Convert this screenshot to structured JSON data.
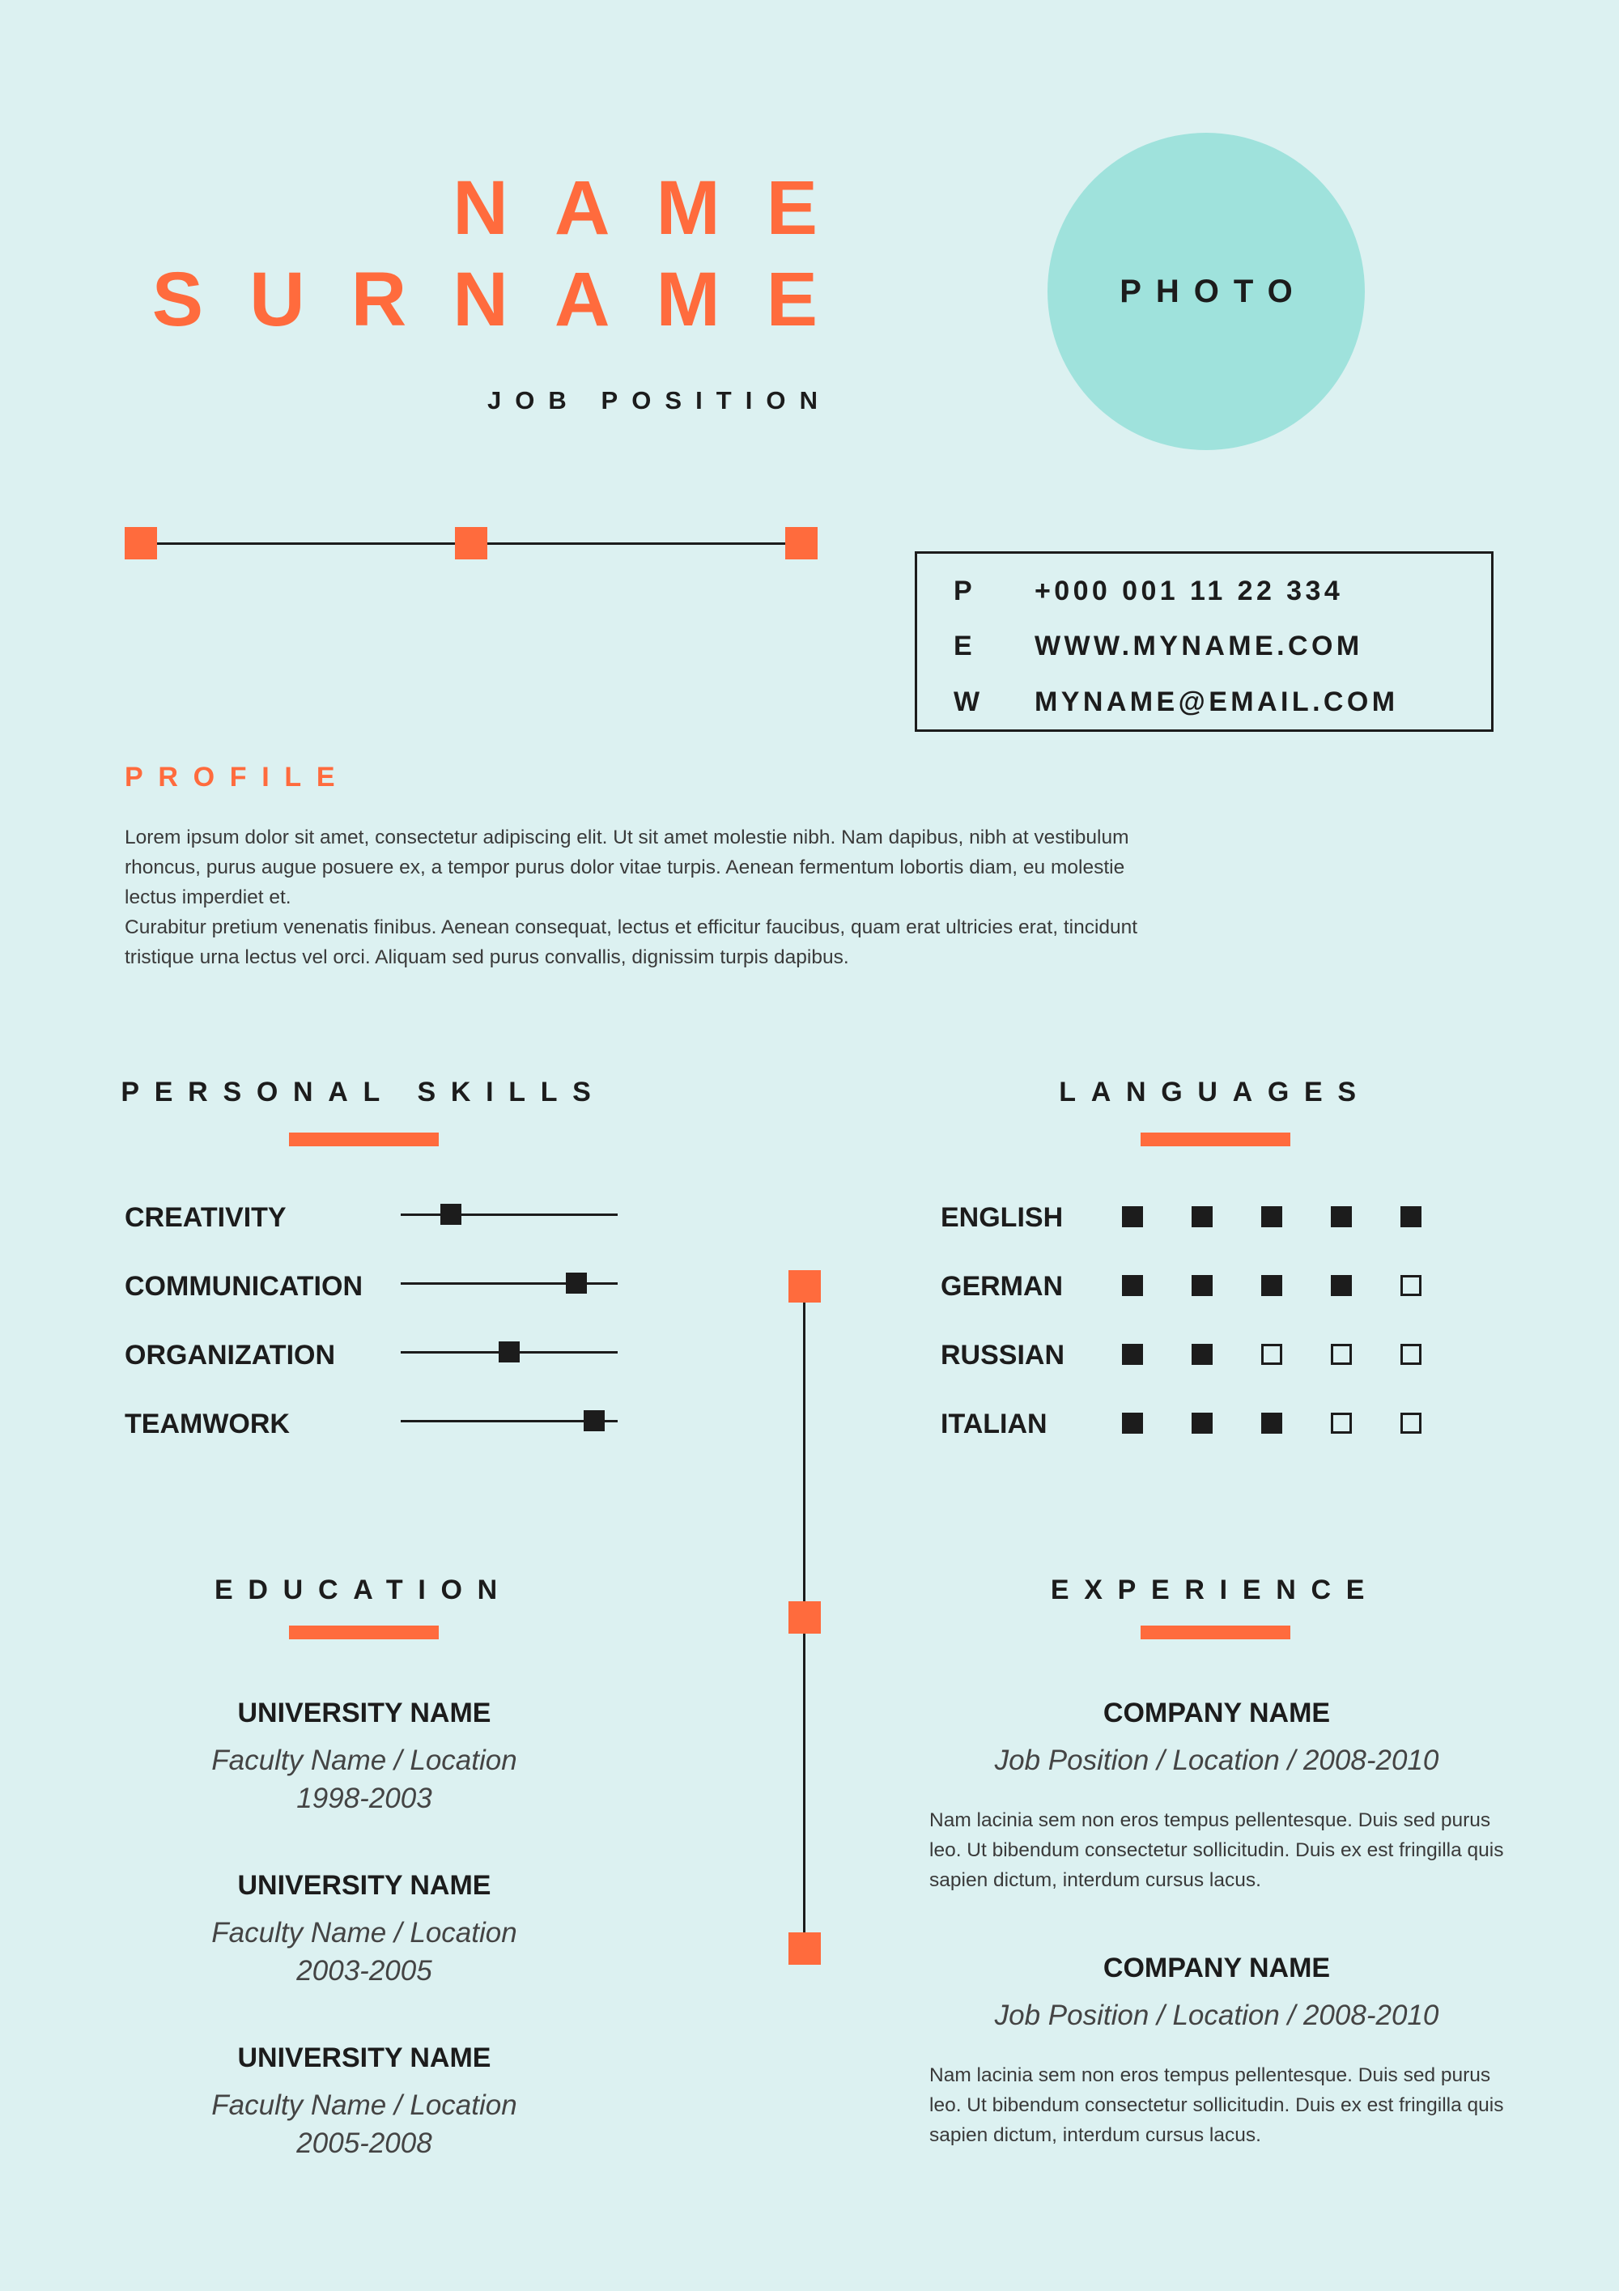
{
  "header": {
    "first_name": "NAME",
    "last_name": "SURNAME",
    "job_position": "JOB POSITION",
    "photo_label": "PHOTO"
  },
  "contact": {
    "rows": [
      {
        "letter": "P",
        "value": "+000 001 11 22 334"
      },
      {
        "letter": "E",
        "value": "WWW.MYNAME.COM"
      },
      {
        "letter": "W",
        "value": "MYNAME@EMAIL.COM"
      }
    ]
  },
  "profile": {
    "heading": "PROFILE",
    "paragraph1": "Lorem ipsum dolor sit amet, consectetur adipiscing elit. Ut sit amet molestie nibh. Nam dapibus, nibh at vestibulum rhoncus, purus augue posuere ex, a tempor purus dolor vitae turpis. Aenean fermentum lobortis diam, eu molestie lectus imperdiet et.",
    "paragraph2": "Curabitur pretium venenatis finibus. Aenean consequat, lectus et efficitur faucibus, quam erat ultricies erat, tincidunt tristique urna lectus vel orci. Aliquam sed purus convallis, dignissim turpis dapibus."
  },
  "skills": {
    "heading": "PERSONAL SKILLS",
    "items": [
      {
        "label": "CREATIVITY",
        "level": 0.23
      },
      {
        "label": "COMMUNICATION",
        "level": 0.81
      },
      {
        "label": "ORGANIZATION",
        "level": 0.5
      },
      {
        "label": "TEAMWORK",
        "level": 0.89
      }
    ]
  },
  "languages": {
    "heading": "LANGUAGES",
    "max_level": 5,
    "items": [
      {
        "label": "ENGLISH",
        "level": 5
      },
      {
        "label": "GERMAN",
        "level": 4
      },
      {
        "label": "RUSSIAN",
        "level": 2
      },
      {
        "label": "ITALIAN",
        "level": 3
      }
    ]
  },
  "education": {
    "heading": "EDUCATION",
    "items": [
      {
        "title": "UNIVERSITY NAME",
        "faculty": "Faculty Name / Location",
        "years": "1998-2003"
      },
      {
        "title": "UNIVERSITY NAME",
        "faculty": "Faculty Name / Location",
        "years": "2003-2005"
      },
      {
        "title": "UNIVERSITY NAME",
        "faculty": "Faculty Name / Location",
        "years": "2005-2008"
      }
    ]
  },
  "experience": {
    "heading": "EXPERIENCE",
    "items": [
      {
        "title": "COMPANY NAME",
        "position": "Job Position / Location / 2008-2010",
        "description": "Nam lacinia sem non eros tempus pellentesque. Duis sed purus leo. Ut bibendum consectetur sollicitudin. Duis ex est fringilla quis sapien dictum, interdum cursus lacus."
      },
      {
        "title": "COMPANY NAME",
        "position": "Job Position / Location / 2008-2010",
        "description": "Nam lacinia sem non eros tempus pellentesque. Duis sed purus leo. Ut bibendum consectetur sollicitudin. Duis ex est fringilla quis sapien dictum, interdum cursus lacus."
      }
    ]
  },
  "colors": {
    "background": "#dcf1f1",
    "accent": "#ff6b3d",
    "photo_circle": "#9fe2dc",
    "text": "#1c1c1c"
  }
}
